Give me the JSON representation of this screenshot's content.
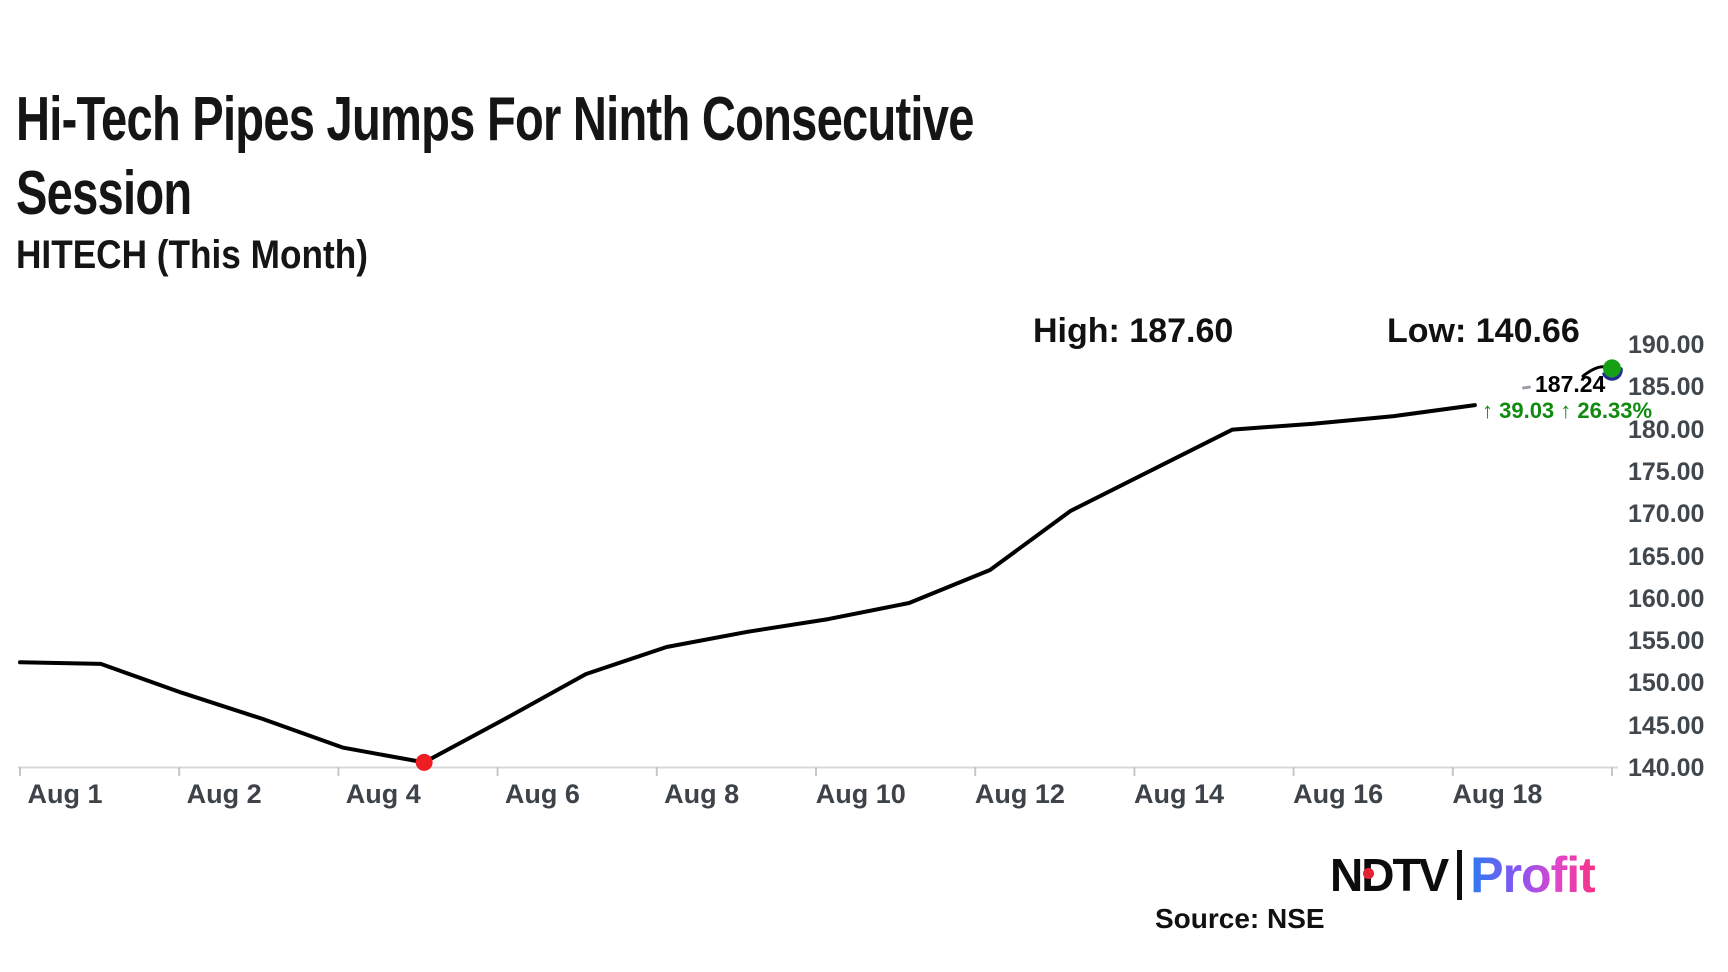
{
  "header": {
    "title_line1": "Hi-Tech Pipes Jumps For Ninth Consecutive",
    "title_line2": "Session",
    "subtitle": "HITECH (This Month)"
  },
  "stats": {
    "high": "High: 187.60",
    "low": "Low: 140.66"
  },
  "last_price": {
    "value": "187.24",
    "change": "↑ 39.03 ↑ 26.33%"
  },
  "chart_data": {
    "type": "line",
    "symbol": "HITECH",
    "period": "This Month",
    "title": "Hi-Tech Pipes Jumps For Ninth Consecutive Session",
    "high": 187.6,
    "low": 140.66,
    "last": 187.24,
    "change_abs": 39.03,
    "change_pct": 26.33,
    "ylim": [
      140,
      190
    ],
    "grid": false,
    "legend": false,
    "y_tick_labels": [
      "190.00",
      "185.00",
      "180.00",
      "175.00",
      "170.00",
      "165.00",
      "160.00",
      "155.00",
      "150.00",
      "145.00",
      "140.00"
    ],
    "x_tick_labels": [
      "Aug 1",
      "Aug 2",
      "Aug 4",
      "Aug 6",
      "Aug 8",
      "Aug 10",
      "Aug 12",
      "Aug 14",
      "Aug 16",
      "Aug 18"
    ],
    "series": [
      {
        "name": "HITECH price",
        "values": [
          152.5,
          152.3,
          148.9,
          145.8,
          142.4,
          140.66,
          145.8,
          151.1,
          154.3,
          156.1,
          157.6,
          159.5,
          163.4,
          170.4,
          175.2,
          180.0,
          180.7,
          181.6,
          182.9,
          187.24
        ]
      }
    ],
    "markers": {
      "low_point_index": 5,
      "low_point_value": 140.66,
      "last_point_index": 19,
      "last_point_value": 187.24
    }
  },
  "footer": {
    "source": "Source: NSE",
    "logo_ndtv": "NDTV",
    "logo_profit": "Profit"
  },
  "colors": {
    "line": "#000000",
    "low_marker": "#ee1c23",
    "last_marker": "#16a016",
    "last_marker_crescent": "#232e8c",
    "change_text": "#108b10",
    "axis_line": "#d8d8d8",
    "tick_mark": "#c4c7ca",
    "axis_label": "#40474d",
    "ndtv_red": "#e52330",
    "profit_gradient_start": "#2b7bf0",
    "profit_gradient_end": "#f63387"
  }
}
